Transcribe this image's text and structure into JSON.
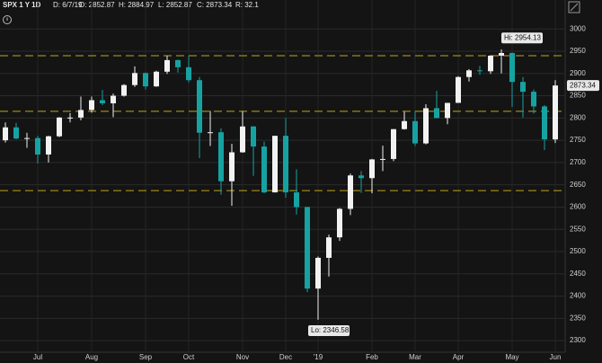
{
  "header": {
    "symbol": "SPX 1 Y 1D",
    "date": "D: 6/7/19",
    "open": "O: 2852.87",
    "high": "H: 2884.97",
    "low": "L: 2852.87",
    "close": "C: 2873.34",
    "range": "R: 32.1"
  },
  "chart_data": {
    "type": "candlestick",
    "categories": [
      null,
      null,
      null,
      "Jul",
      null,
      null,
      null,
      null,
      "Aug",
      null,
      null,
      null,
      null,
      "Sep",
      null,
      null,
      null,
      "Oct",
      null,
      null,
      null,
      null,
      "Nov",
      null,
      null,
      null,
      "Dec",
      null,
      null,
      "'19",
      null,
      null,
      null,
      null,
      "Feb",
      null,
      null,
      null,
      "Mar",
      null,
      null,
      null,
      "Apr",
      null,
      null,
      null,
      null,
      "May",
      null,
      null,
      null,
      "Jun"
    ],
    "open": [
      2750,
      2779,
      2754,
      2755,
      2718,
      2759,
      2801,
      2801,
      2818,
      2840,
      2833,
      2850,
      2874,
      2901,
      2871,
      2904,
      2930,
      2914,
      2885,
      2767,
      2768,
      2658,
      2723,
      2781,
      2736,
      2633,
      2760,
      2633,
      2600,
      2417,
      2486,
      2532,
      2596,
      2671,
      2665,
      2707,
      2708,
      2775,
      2793,
      2743,
      2822,
      2800,
      2834,
      2892,
      2907,
      2905,
      2940,
      2946,
      2881,
      2859,
      2826,
      2752
    ],
    "high": [
      2790,
      2789,
      2767,
      2760,
      2760,
      2802,
      2811,
      2848,
      2848,
      2863,
      2855,
      2876,
      2916,
      2902,
      2906,
      2940,
      2931,
      2939,
      2892,
      2816,
      2777,
      2742,
      2815,
      2782,
      2747,
      2760,
      2800,
      2685,
      2601,
      2489,
      2538,
      2598,
      2675,
      2681,
      2708,
      2738,
      2775,
      2814,
      2816,
      2831,
      2861,
      2834,
      2894,
      2910,
      2917,
      2941,
      2954,
      2947,
      2892,
      2864,
      2829,
      2885
    ],
    "low": [
      2745,
      2752,
      2733,
      2698,
      2700,
      2757,
      2790,
      2795,
      2812,
      2829,
      2802,
      2848,
      2870,
      2864,
      2870,
      2899,
      2902,
      2880,
      2710,
      2737,
      2628,
      2603,
      2722,
      2670,
      2631,
      2633,
      2621,
      2583,
      2409,
      2347,
      2444,
      2524,
      2582,
      2632,
      2631,
      2681,
      2703,
      2774,
      2737,
      2741,
      2800,
      2786,
      2834,
      2882,
      2897,
      2899,
      2900,
      2825,
      2801,
      2810,
      2728,
      2744
    ],
    "close": [
      2779,
      2754,
      2755,
      2718,
      2759,
      2801,
      2801,
      2818,
      2840,
      2833,
      2850,
      2874,
      2901,
      2871,
      2904,
      2930,
      2914,
      2885,
      2767,
      2768,
      2658,
      2723,
      2781,
      2736,
      2633,
      2760,
      2633,
      2600,
      2417,
      2486,
      2532,
      2596,
      2671,
      2665,
      2707,
      2708,
      2775,
      2793,
      2743,
      2822,
      2800,
      2834,
      2892,
      2907,
      2905,
      2940,
      2946,
      2881,
      2859,
      2826,
      2752,
      2873
    ],
    "up_color": "#f2f2f2",
    "down_color": "#17a2a2",
    "levels": [
      2940,
      2815,
      2637
    ],
    "level_color": "#bfa51e",
    "ylim": [
      2268,
      3065
    ],
    "yticks": [
      2300,
      2350,
      2400,
      2450,
      2500,
      2550,
      2600,
      2650,
      2700,
      2750,
      2800,
      2850,
      2900,
      2950,
      3000
    ],
    "grid": true,
    "annotations": {
      "high": "Hi: 2954.13",
      "low": "Lo: 2346.58",
      "last": "2873.34"
    }
  }
}
